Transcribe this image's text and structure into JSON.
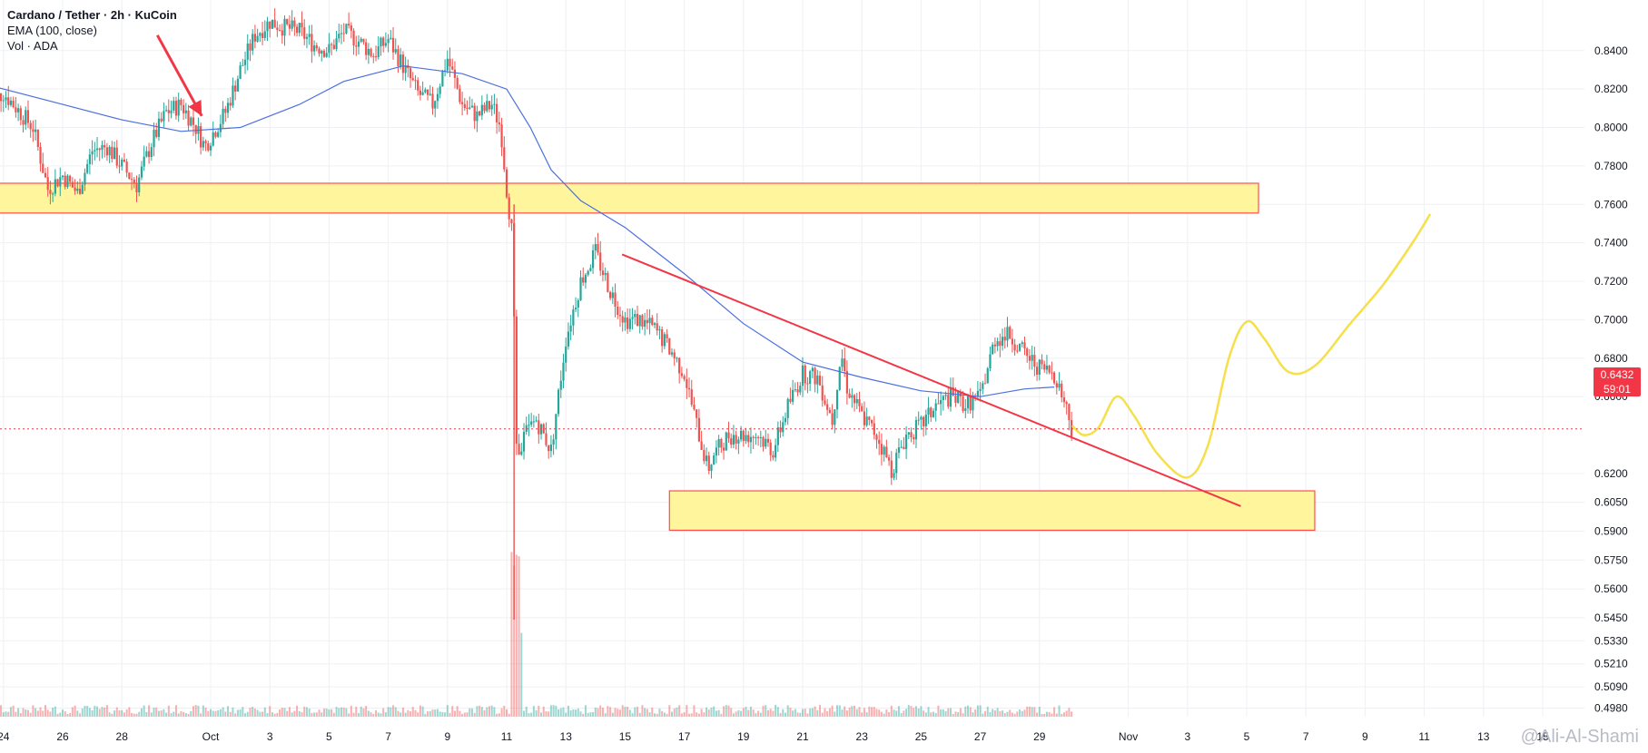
{
  "legend": {
    "title": "Cardano / Tether · 2h · KuCoin",
    "ema": "EMA (100, close)",
    "vol": "Vol · ADA"
  },
  "watermark": "@Ali-Al-Shami",
  "price_badge": {
    "price": "0.6432",
    "countdown": "59:01"
  },
  "colors": {
    "up": "#26a69a",
    "down": "#ef5350",
    "ema": "#4c6fe0",
    "zone_fill": "#fff59d",
    "zone_stroke": "#ff4d4d",
    "trendline": "#f23645",
    "projection": "#f5e04b",
    "current_line": "#f23645",
    "grid": "#eef0f3",
    "axis_text": "#131722"
  },
  "chart_data": {
    "type": "candlestick",
    "title": "Cardano / Tether · 2h · KuCoin",
    "ylim": [
      0.4935,
      0.855
    ],
    "yticks": [
      "0.8400",
      "0.8200",
      "0.8000",
      "0.7800",
      "0.7600",
      "0.7400",
      "0.7200",
      "0.7000",
      "0.6800",
      "0.6600",
      "0.6200",
      "0.6050",
      "0.5900",
      "0.5750",
      "0.5600",
      "0.5450",
      "0.5330",
      "0.5210",
      "0.5090",
      "0.4980"
    ],
    "xticks": [
      {
        "label": "24",
        "day": -7
      },
      {
        "label": "26",
        "day": -5
      },
      {
        "label": "28",
        "day": -3
      },
      {
        "label": "Oct",
        "day": 0
      },
      {
        "label": "3",
        "day": 2
      },
      {
        "label": "5",
        "day": 4
      },
      {
        "label": "7",
        "day": 6
      },
      {
        "label": "9",
        "day": 8
      },
      {
        "label": "11",
        "day": 10
      },
      {
        "label": "13",
        "day": 12
      },
      {
        "label": "15",
        "day": 14
      },
      {
        "label": "17",
        "day": 16
      },
      {
        "label": "19",
        "day": 18
      },
      {
        "label": "21",
        "day": 20
      },
      {
        "label": "23",
        "day": 22
      },
      {
        "label": "25",
        "day": 24
      },
      {
        "label": "27",
        "day": 26
      },
      {
        "label": "29",
        "day": 28
      },
      {
        "label": "Nov",
        "day": 31
      },
      {
        "label": "3",
        "day": 33
      },
      {
        "label": "5",
        "day": 35
      },
      {
        "label": "7",
        "day": 37
      },
      {
        "label": "9",
        "day": 39
      },
      {
        "label": "11",
        "day": 41
      },
      {
        "label": "13",
        "day": 43
      },
      {
        "label": "15",
        "day": 45
      }
    ],
    "close_path": [
      [
        -7.5,
        0.812
      ],
      [
        -7,
        0.818
      ],
      [
        -6,
        0.8
      ],
      [
        -5.5,
        0.768
      ],
      [
        -5,
        0.775
      ],
      [
        -4.5,
        0.766
      ],
      [
        -4,
        0.788
      ],
      [
        -3.5,
        0.79
      ],
      [
        -3,
        0.78
      ],
      [
        -2.5,
        0.77
      ],
      [
        -2,
        0.792
      ],
      [
        -1.5,
        0.808
      ],
      [
        -1,
        0.812
      ],
      [
        -0.5,
        0.8
      ],
      [
        -0.2,
        0.79
      ],
      [
        0,
        0.795
      ],
      [
        0.5,
        0.808
      ],
      [
        1,
        0.83
      ],
      [
        1.5,
        0.848
      ],
      [
        2,
        0.855
      ],
      [
        2.5,
        0.852
      ],
      [
        3,
        0.85
      ],
      [
        3.5,
        0.843
      ],
      [
        4,
        0.84
      ],
      [
        4.5,
        0.85
      ],
      [
        5,
        0.845
      ],
      [
        5.5,
        0.838
      ],
      [
        6,
        0.846
      ],
      [
        6.5,
        0.832
      ],
      [
        7,
        0.818
      ],
      [
        7.5,
        0.812
      ],
      [
        8,
        0.836
      ],
      [
        8.5,
        0.812
      ],
      [
        9,
        0.806
      ],
      [
        9.5,
        0.812
      ],
      [
        9.8,
        0.8
      ],
      [
        10,
        0.768
      ],
      [
        10.2,
        0.742
      ],
      [
        10.35,
        0.625
      ],
      [
        10.6,
        0.64
      ],
      [
        11,
        0.648
      ],
      [
        11.5,
        0.632
      ],
      [
        12,
        0.69
      ],
      [
        12.5,
        0.72
      ],
      [
        13,
        0.735
      ],
      [
        13.5,
        0.715
      ],
      [
        14,
        0.7
      ],
      [
        14.5,
        0.7
      ],
      [
        15,
        0.695
      ],
      [
        15.5,
        0.685
      ],
      [
        16,
        0.672
      ],
      [
        16.5,
        0.64
      ],
      [
        16.8,
        0.622
      ],
      [
        17,
        0.63
      ],
      [
        17.5,
        0.64
      ],
      [
        18,
        0.64
      ],
      [
        18.5,
        0.64
      ],
      [
        19,
        0.632
      ],
      [
        19.5,
        0.655
      ],
      [
        20,
        0.672
      ],
      [
        20.5,
        0.67
      ],
      [
        21,
        0.648
      ],
      [
        21.3,
        0.683
      ],
      [
        21.5,
        0.665
      ],
      [
        22,
        0.65
      ],
      [
        22.5,
        0.64
      ],
      [
        23,
        0.622
      ],
      [
        23.5,
        0.64
      ],
      [
        24,
        0.645
      ],
      [
        24.5,
        0.655
      ],
      [
        25,
        0.66
      ],
      [
        25.5,
        0.656
      ],
      [
        26,
        0.66
      ],
      [
        26.5,
        0.69
      ],
      [
        27,
        0.692
      ],
      [
        27.5,
        0.682
      ],
      [
        28,
        0.675
      ],
      [
        28.5,
        0.672
      ],
      [
        28.9,
        0.655
      ],
      [
        29.1,
        0.643
      ]
    ],
    "ema_path": [
      [
        -7.5,
        0.822
      ],
      [
        -5,
        0.812
      ],
      [
        -3,
        0.804
      ],
      [
        -1,
        0.798
      ],
      [
        1,
        0.8
      ],
      [
        3,
        0.812
      ],
      [
        4.5,
        0.824
      ],
      [
        6.5,
        0.832
      ],
      [
        8.5,
        0.828
      ],
      [
        10,
        0.82
      ],
      [
        10.8,
        0.8
      ],
      [
        11.5,
        0.778
      ],
      [
        12.5,
        0.762
      ],
      [
        14,
        0.748
      ],
      [
        16,
        0.724
      ],
      [
        18,
        0.698
      ],
      [
        20,
        0.678
      ],
      [
        22,
        0.67
      ],
      [
        24,
        0.663
      ],
      [
        26,
        0.66
      ],
      [
        27.5,
        0.664
      ],
      [
        28.5,
        0.665
      ]
    ],
    "zones": [
      {
        "x1": -7.5,
        "x2": 35.4,
        "y1": 0.7555,
        "y2": 0.771
      },
      {
        "x1": 15.5,
        "x2": 37.3,
        "y1": 0.5905,
        "y2": 0.611
      }
    ],
    "trendline": {
      "from": [
        13.9,
        0.734
      ],
      "to": [
        34.8,
        0.603
      ]
    },
    "projection": [
      [
        29.1,
        0.645
      ],
      [
        29.5,
        0.64
      ],
      [
        30,
        0.644
      ],
      [
        30.6,
        0.66
      ],
      [
        31.2,
        0.65
      ],
      [
        32,
        0.63
      ],
      [
        33,
        0.618
      ],
      [
        33.7,
        0.635
      ],
      [
        34.4,
        0.68
      ],
      [
        35,
        0.699
      ],
      [
        35.6,
        0.69
      ],
      [
        36.4,
        0.673
      ],
      [
        37.3,
        0.676
      ],
      [
        38.5,
        0.698
      ],
      [
        39.6,
        0.718
      ],
      [
        40.6,
        0.74
      ],
      [
        41.2,
        0.755
      ]
    ],
    "arrow": {
      "from": [
        -1.8,
        0.848
      ],
      "to": [
        -0.3,
        0.806
      ]
    },
    "current_price": 0.6432,
    "volume_spike": {
      "x": 10.3,
      "ylim_fraction": 0.24
    }
  }
}
